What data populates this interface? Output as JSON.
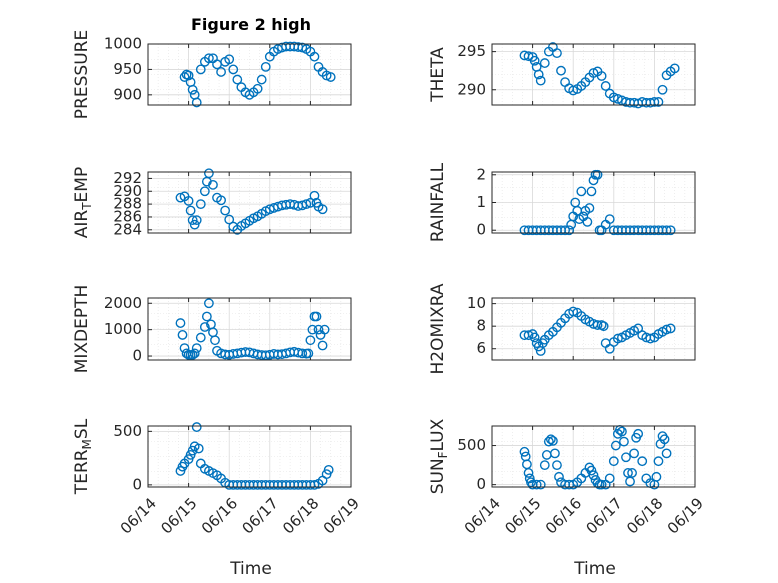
{
  "figure": {
    "title": "Figure 2 high",
    "xlabel": "Time",
    "colors": {
      "marker": "#0072BD",
      "axis": "#262626",
      "grid": "#d8d8d8"
    }
  },
  "chart_data": [
    {
      "type": "scatter",
      "ylabel": "PRESSURE",
      "ylim": [
        880,
        1000
      ],
      "yticks": [
        "900",
        "950",
        "1000"
      ],
      "ytick_values": [
        900,
        950,
        1000
      ],
      "xticks": [],
      "series": [
        {
          "x": [
            14.9,
            14.95,
            15.0,
            15.05,
            15.1,
            15.15,
            15.2,
            15.3,
            15.4,
            15.5,
            15.6,
            15.7,
            15.8,
            15.9,
            16.0,
            16.1,
            16.2,
            16.3,
            16.4,
            16.5,
            16.6,
            16.7,
            16.8,
            16.9,
            17.0,
            17.1,
            17.2,
            17.3,
            17.4,
            17.5,
            17.6,
            17.7,
            17.8,
            17.9,
            18.0,
            18.1,
            18.2,
            18.3,
            18.4,
            18.5
          ],
          "y": [
            935,
            940,
            938,
            925,
            910,
            900,
            885,
            950,
            965,
            972,
            972,
            960,
            945,
            965,
            970,
            950,
            930,
            915,
            905,
            900,
            905,
            912,
            930,
            955,
            975,
            985,
            990,
            993,
            995,
            995,
            995,
            994,
            993,
            990,
            985,
            975,
            955,
            945,
            938,
            935
          ]
        }
      ]
    },
    {
      "type": "scatter",
      "ylabel": "THETA",
      "ylim": [
        288,
        296
      ],
      "yticks": [
        "290",
        "295"
      ],
      "ytick_values": [
        290,
        295
      ],
      "xticks": [],
      "series": [
        {
          "x": [
            14.8,
            14.9,
            15.0,
            15.05,
            15.1,
            15.15,
            15.2,
            15.3,
            15.4,
            15.5,
            15.6,
            15.7,
            15.8,
            15.9,
            16.0,
            16.1,
            16.2,
            16.3,
            16.4,
            16.5,
            16.6,
            16.7,
            16.8,
            16.9,
            17.0,
            17.1,
            17.2,
            17.3,
            17.4,
            17.5,
            17.6,
            17.7,
            17.8,
            17.9,
            18.0,
            18.1,
            18.2,
            18.3,
            18.4,
            18.5
          ],
          "y": [
            294.5,
            294.4,
            294.3,
            293.8,
            293.0,
            292.0,
            291.2,
            293.5,
            295.0,
            295.6,
            294.8,
            292.5,
            291.0,
            290.2,
            289.9,
            290.1,
            290.5,
            291.0,
            291.6,
            292.2,
            292.4,
            291.8,
            290.5,
            289.5,
            289.0,
            288.8,
            288.6,
            288.4,
            288.3,
            288.3,
            288.2,
            288.4,
            288.3,
            288.3,
            288.4,
            288.4,
            290.0,
            291.9,
            292.4,
            292.8
          ]
        }
      ]
    },
    {
      "type": "scatter",
      "ylabel": "AIR_TEMP",
      "ylim": [
        283.5,
        293
      ],
      "yticks": [
        "284",
        "286",
        "288",
        "290",
        "292"
      ],
      "ytick_values": [
        284,
        286,
        288,
        290,
        292
      ],
      "xticks": [],
      "series": [
        {
          "x": [
            14.8,
            14.9,
            15.0,
            15.05,
            15.1,
            15.15,
            15.2,
            15.3,
            15.4,
            15.45,
            15.5,
            15.6,
            15.7,
            15.8,
            15.9,
            16.0,
            16.1,
            16.2,
            16.3,
            16.4,
            16.5,
            16.6,
            16.7,
            16.8,
            16.9,
            17.0,
            17.1,
            17.2,
            17.3,
            17.4,
            17.5,
            17.6,
            17.7,
            17.8,
            17.9,
            18.0,
            18.1,
            18.15,
            18.2,
            18.3
          ],
          "y": [
            289,
            289.2,
            288.5,
            287,
            285.5,
            284.8,
            285.5,
            288,
            290,
            291.5,
            292.8,
            291,
            289,
            288.6,
            287,
            285.6,
            284.5,
            284,
            284.6,
            285,
            285.4,
            285.8,
            286.1,
            286.5,
            286.9,
            287.2,
            287.4,
            287.6,
            287.8,
            287.9,
            288,
            287.9,
            287.7,
            287.8,
            288,
            288.2,
            289.3,
            288.2,
            287.6,
            287.2
          ]
        }
      ]
    },
    {
      "type": "scatter",
      "ylabel": "RAINFALL",
      "ylim": [
        -0.1,
        2.1
      ],
      "yticks": [
        "0",
        "1",
        "2"
      ],
      "ytick_values": [
        0,
        1,
        2
      ],
      "xticks": [],
      "series": [
        {
          "x": [
            14.8,
            14.9,
            15.0,
            15.1,
            15.2,
            15.3,
            15.4,
            15.5,
            15.6,
            15.7,
            15.8,
            15.9,
            15.95,
            16.0,
            16.05,
            16.1,
            16.15,
            16.2,
            16.25,
            16.3,
            16.35,
            16.4,
            16.45,
            16.5,
            16.55,
            16.6,
            16.65,
            16.7,
            16.8,
            16.9,
            17.0,
            17.1,
            17.2,
            17.3,
            17.4,
            17.5,
            17.6,
            17.7,
            17.8,
            17.9,
            18.0,
            18.1,
            18.2,
            18.3,
            18.4
          ],
          "y": [
            0,
            0,
            0,
            0,
            0,
            0,
            0,
            0,
            0,
            0,
            0,
            0,
            0.2,
            0.5,
            1.0,
            0.7,
            0.4,
            1.4,
            0.5,
            0.7,
            0.3,
            0.8,
            1.4,
            1.8,
            2.0,
            2.0,
            0,
            0,
            0.2,
            0.4,
            0,
            0,
            0,
            0,
            0,
            0,
            0,
            0,
            0,
            0,
            0,
            0,
            0,
            0,
            0
          ]
        }
      ]
    },
    {
      "type": "scatter",
      "ylabel": "MIXDEPTH",
      "ylim": [
        -150,
        2200
      ],
      "yticks": [
        "0",
        "1000",
        "2000"
      ],
      "ytick_values": [
        0,
        1000,
        2000
      ],
      "xticks": [],
      "series": [
        {
          "x": [
            14.8,
            14.85,
            14.9,
            14.95,
            15.0,
            15.05,
            15.1,
            15.15,
            15.2,
            15.3,
            15.4,
            15.45,
            15.5,
            15.55,
            15.6,
            15.65,
            15.7,
            15.8,
            15.9,
            16.0,
            16.1,
            16.2,
            16.3,
            16.4,
            16.5,
            16.6,
            16.7,
            16.8,
            16.9,
            17.0,
            17.1,
            17.2,
            17.3,
            17.4,
            17.5,
            17.6,
            17.7,
            17.8,
            17.9,
            17.95,
            18.0,
            18.05,
            18.1,
            18.15,
            18.2,
            18.25,
            18.3,
            18.35
          ],
          "y": [
            1250,
            800,
            300,
            100,
            50,
            40,
            50,
            100,
            300,
            700,
            1100,
            1500,
            2000,
            1200,
            900,
            600,
            200,
            100,
            60,
            50,
            80,
            100,
            130,
            150,
            140,
            100,
            60,
            40,
            30,
            50,
            80,
            60,
            70,
            100,
            140,
            160,
            130,
            100,
            90,
            100,
            600,
            1000,
            1500,
            1500,
            1000,
            800,
            400,
            1000
          ]
        }
      ]
    },
    {
      "type": "scatter",
      "ylabel": "H2OMIXRA",
      "ylim": [
        5,
        10.5
      ],
      "yticks": [
        "6",
        "8",
        "10"
      ],
      "ytick_values": [
        6,
        8,
        10
      ],
      "xticks": [],
      "series": [
        {
          "x": [
            14.8,
            14.9,
            15.0,
            15.05,
            15.1,
            15.15,
            15.2,
            15.25,
            15.3,
            15.4,
            15.5,
            15.6,
            15.7,
            15.8,
            15.9,
            16.0,
            16.1,
            16.2,
            16.3,
            16.4,
            16.5,
            16.6,
            16.7,
            16.75,
            16.8,
            16.9,
            17.0,
            17.1,
            17.2,
            17.3,
            17.4,
            17.5,
            17.6,
            17.7,
            17.8,
            17.9,
            18.0,
            18.1,
            18.2,
            18.3,
            18.4
          ],
          "y": [
            7.2,
            7.2,
            7.3,
            7.0,
            6.5,
            6.2,
            5.8,
            6.5,
            6.8,
            7.2,
            7.5,
            7.9,
            8.3,
            8.7,
            9.1,
            9.3,
            9.2,
            8.9,
            8.6,
            8.4,
            8.2,
            8.1,
            8.1,
            8.0,
            6.5,
            6.0,
            6.6,
            6.9,
            7.0,
            7.2,
            7.4,
            7.6,
            7.8,
            7.2,
            7.0,
            6.9,
            7.0,
            7.3,
            7.5,
            7.7,
            7.8
          ]
        }
      ]
    },
    {
      "type": "scatter",
      "ylabel": "TERR_MSL",
      "ylim": [
        -20,
        550
      ],
      "yticks": [
        "0",
        "500"
      ],
      "ytick_values": [
        0,
        500
      ],
      "xticks": [
        "06/14",
        "06/15",
        "06/16",
        "06/17",
        "06/18",
        "06/19"
      ],
      "xtick_values": [
        14,
        15,
        16,
        17,
        18,
        19
      ],
      "series": [
        {
          "x": [
            14.8,
            14.85,
            14.9,
            15.0,
            15.05,
            15.1,
            15.15,
            15.2,
            15.25,
            15.3,
            15.4,
            15.5,
            15.6,
            15.7,
            15.8,
            15.9,
            16.0,
            16.1,
            16.2,
            16.3,
            16.4,
            16.5,
            16.6,
            16.7,
            16.8,
            16.9,
            17.0,
            17.1,
            17.2,
            17.3,
            17.4,
            17.5,
            17.6,
            17.7,
            17.8,
            17.9,
            18.0,
            18.1,
            18.2,
            18.3,
            18.4,
            18.45
          ],
          "y": [
            130,
            170,
            200,
            240,
            280,
            320,
            360,
            540,
            340,
            200,
            150,
            130,
            110,
            90,
            60,
            20,
            0,
            0,
            0,
            0,
            0,
            0,
            0,
            0,
            0,
            0,
            0,
            0,
            0,
            0,
            0,
            0,
            0,
            0,
            0,
            0,
            0,
            0,
            10,
            40,
            100,
            140
          ]
        }
      ]
    },
    {
      "type": "scatter",
      "ylabel": "SUN_FLUX",
      "ylim": [
        -30,
        750
      ],
      "yticks": [
        "0",
        "500"
      ],
      "ytick_values": [
        0,
        500
      ],
      "xticks": [
        "06/14",
        "06/15",
        "06/16",
        "06/17",
        "06/18",
        "06/19"
      ],
      "xtick_values": [
        14,
        15,
        16,
        17,
        18,
        19
      ],
      "series": [
        {
          "x": [
            14.8,
            14.83,
            14.86,
            14.9,
            14.93,
            14.96,
            15.0,
            15.1,
            15.2,
            15.3,
            15.35,
            15.4,
            15.45,
            15.5,
            15.55,
            15.6,
            15.65,
            15.7,
            15.8,
            15.9,
            16.0,
            16.1,
            16.2,
            16.3,
            16.4,
            16.45,
            16.5,
            16.55,
            16.6,
            16.65,
            16.7,
            16.8,
            16.9,
            17.0,
            17.05,
            17.1,
            17.15,
            17.2,
            17.25,
            17.3,
            17.35,
            17.4,
            17.45,
            17.5,
            17.55,
            17.6,
            17.7,
            17.8,
            17.9,
            18.0,
            18.05,
            18.1,
            18.15,
            18.2,
            18.25,
            18.3
          ],
          "y": [
            420,
            360,
            260,
            150,
            80,
            30,
            0,
            0,
            0,
            250,
            380,
            550,
            580,
            560,
            400,
            250,
            100,
            30,
            0,
            0,
            0,
            30,
            80,
            150,
            220,
            180,
            120,
            60,
            20,
            0,
            0,
            0,
            80,
            300,
            500,
            650,
            700,
            680,
            550,
            350,
            150,
            40,
            150,
            400,
            600,
            650,
            300,
            80,
            20,
            0,
            100,
            300,
            520,
            620,
            580,
            400
          ]
        }
      ]
    }
  ]
}
